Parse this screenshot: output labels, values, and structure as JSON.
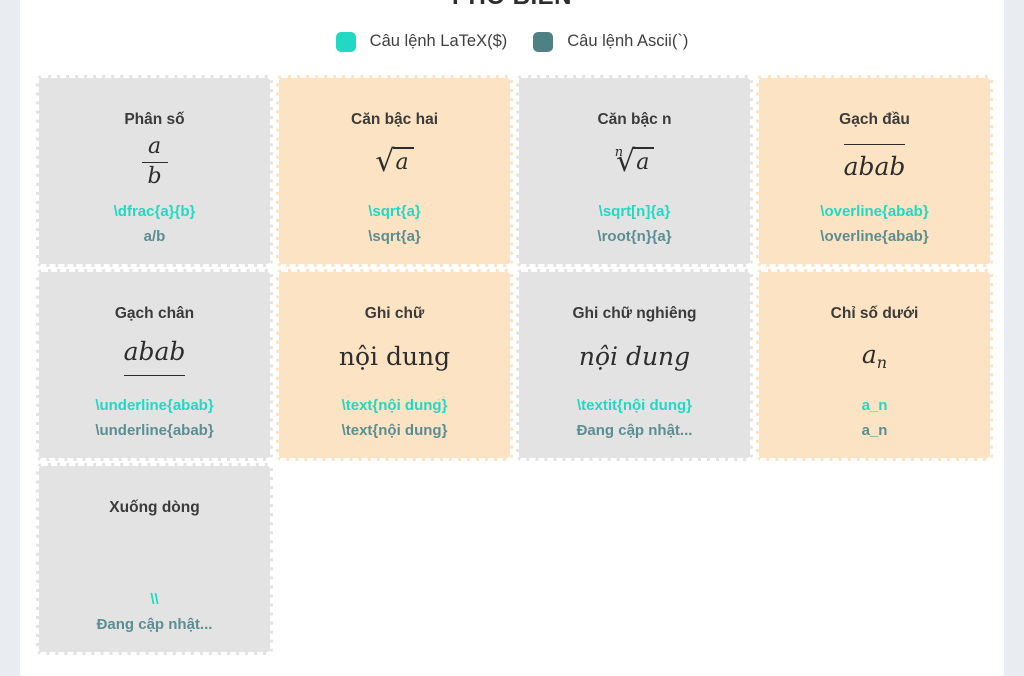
{
  "page": {
    "title": "PHỔ BIẾN"
  },
  "colors": {
    "latex_accent": "#21d9c2",
    "ascii_accent": "#4e8184",
    "ascii_command_text": "#5b8e91",
    "card_gray": "#e3e3e3",
    "card_peach": "#fce3c3",
    "edge_strip": "#e9edf2"
  },
  "legend": {
    "items": [
      {
        "icon": "latex-color-swatch-icon",
        "color": "#21d9c2",
        "label": "Câu lệnh LaTeX($)"
      },
      {
        "icon": "ascii-color-swatch-icon",
        "color": "#4e8184",
        "label": "Câu lệnh Ascii(`)"
      }
    ]
  },
  "cards": [
    {
      "title": "Phân số",
      "math": {
        "numerator": "a",
        "denominator": "b"
      },
      "latex": "\\dfrac{a}{b}",
      "ascii": "a/b"
    },
    {
      "title": "Căn bậc hai",
      "math": {
        "radicand": "a"
      },
      "latex": "\\sqrt{a}",
      "ascii": "\\sqrt{a}"
    },
    {
      "title": "Căn bậc n",
      "math": {
        "index": "n",
        "radicand": "a"
      },
      "latex": "\\sqrt[n]{a}",
      "ascii": "\\root{n}{a}"
    },
    {
      "title": "Gạch đầu",
      "math": {
        "text": "abab"
      },
      "latex": "\\overline{abab}",
      "ascii": "\\overline{abab}"
    },
    {
      "title": "Gạch chân",
      "math": {
        "text": "abab"
      },
      "latex": "\\underline{abab}",
      "ascii": "\\underline{abab}"
    },
    {
      "title": "Ghi chữ",
      "math": {
        "text": "nội dung"
      },
      "latex": "\\text{nội dung}",
      "ascii": "\\text{nội dung}"
    },
    {
      "title": "Ghi chữ nghiêng",
      "math": {
        "text": "nội dung"
      },
      "latex": "\\textit{nội dung}",
      "ascii": "Đang cập nhật..."
    },
    {
      "title": "Chỉ số dưới",
      "math": {
        "base": "a",
        "sub": "n"
      },
      "latex": "a_n",
      "ascii": "a_n"
    },
    {
      "title": "Xuống dòng",
      "math": {},
      "latex": "\\\\",
      "ascii": "Đang cập nhật..."
    }
  ]
}
